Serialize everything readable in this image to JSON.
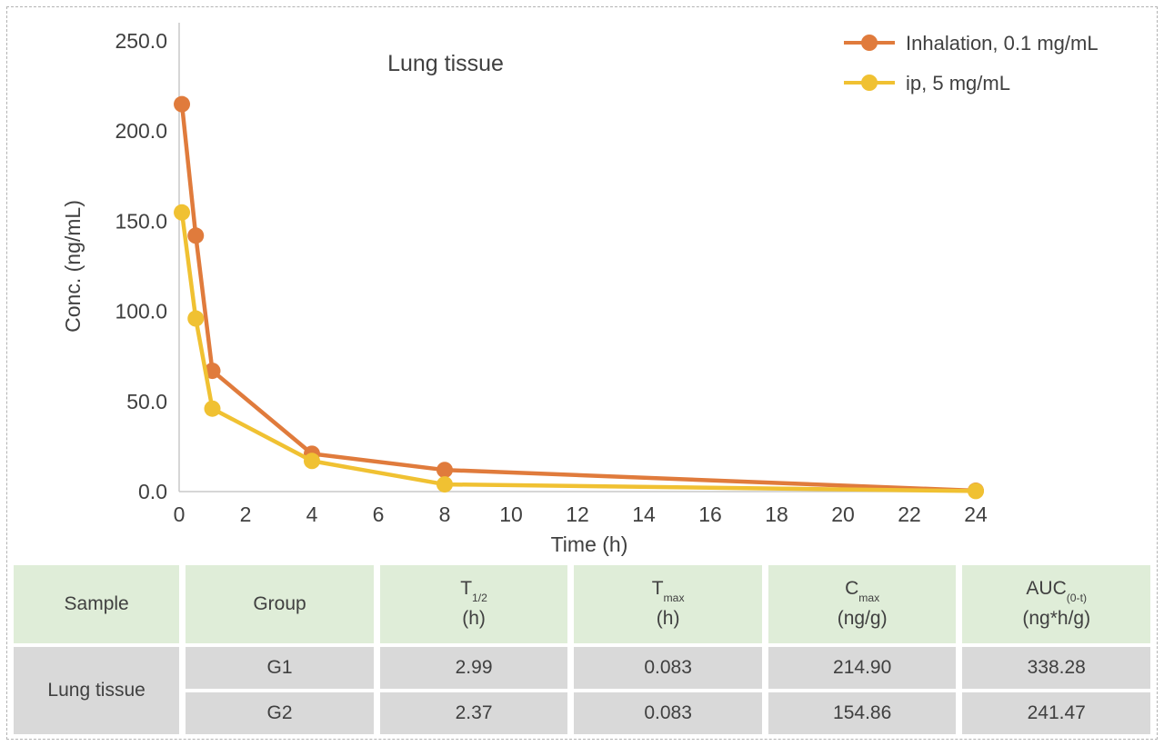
{
  "chart_data": {
    "type": "line",
    "title": "Lung tissue",
    "xlabel": "Time (h)",
    "ylabel": "Conc. (ng/mL)",
    "xlim": [
      0,
      24
    ],
    "ylim": [
      0,
      250
    ],
    "x_ticks": [
      0,
      2,
      4,
      6,
      8,
      10,
      12,
      14,
      16,
      18,
      20,
      22,
      24
    ],
    "y_ticks": [
      0,
      50,
      100,
      150,
      200,
      250
    ],
    "grid": false,
    "legend_position": "top-right",
    "x": [
      0.083,
      0.5,
      1,
      4,
      8,
      24
    ],
    "series": [
      {
        "name": "Inhalation, 0.1 mg/mL",
        "color": "#E07B3C",
        "values": [
          214.9,
          142,
          67,
          21,
          12,
          0.5
        ]
      },
      {
        "name": "ip, 5 mg/mL",
        "color": "#F0C132",
        "values": [
          154.86,
          96,
          46,
          17,
          4,
          0.3
        ]
      }
    ],
    "axis_color": "#c9c9c9"
  },
  "table": {
    "header_bg": "#dfedd8",
    "row_bg": "#d9d9d9",
    "headers": [
      {
        "main": "Sample",
        "sub": "",
        "unit": ""
      },
      {
        "main": "Group",
        "sub": "",
        "unit": ""
      },
      {
        "main": "T",
        "sub": "1/2",
        "unit": "(h)"
      },
      {
        "main": "T",
        "sub": "max",
        "unit": "(h)"
      },
      {
        "main": "C",
        "sub": "max",
        "unit": "(ng/g)"
      },
      {
        "main": "AUC",
        "sub": "(0-t)",
        "unit": "(ng*h/g)"
      }
    ],
    "sample_label": "Lung tissue",
    "rows": [
      {
        "group": "G1",
        "t12": "2.99",
        "tmax": "0.083",
        "cmax": "214.90",
        "auc": "338.28"
      },
      {
        "group": "G2",
        "t12": "2.37",
        "tmax": "0.083",
        "cmax": "154.86",
        "auc": "241.47"
      }
    ]
  }
}
